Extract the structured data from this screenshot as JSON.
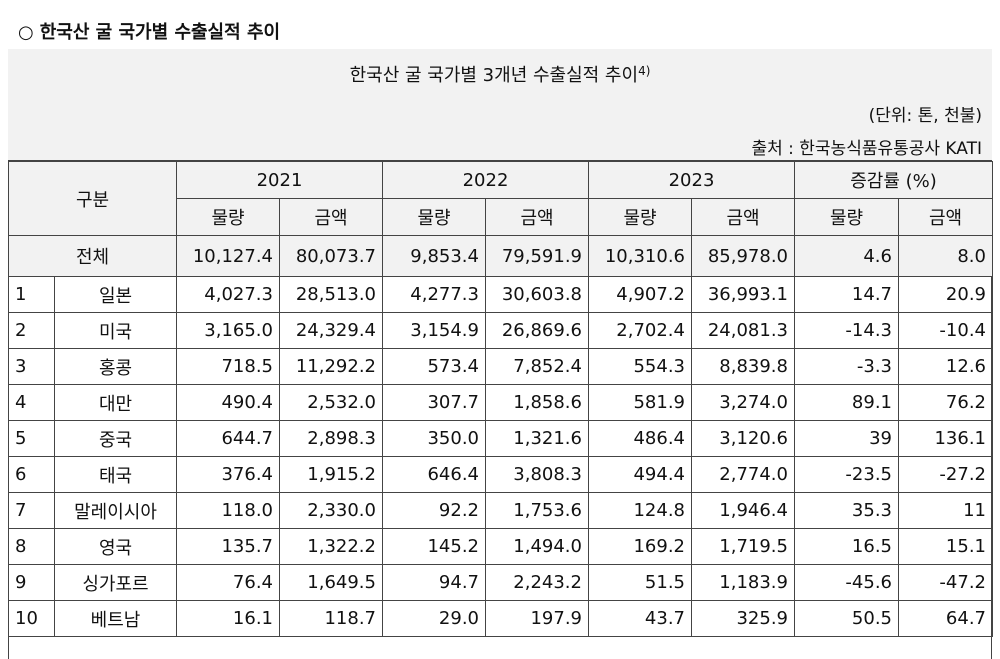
{
  "heading": {
    "marker": "○",
    "text": "한국산 굴 국가별 수출실적 추이"
  },
  "caption": {
    "title": "한국산 굴 국가별 3개년 수출실적 추이",
    "footnote": "4)",
    "unit": "(단위: 톤, 천불)",
    "source": "출처 : 한국농식품유통공사 KATI"
  },
  "columns": {
    "category": "구분",
    "years": [
      "2021",
      "2022",
      "2023"
    ],
    "change": "증감률 (%)",
    "volume": "물량",
    "amount": "금액"
  },
  "total": {
    "label": "전체",
    "values": [
      "10,127.4",
      "80,073.7",
      "9,853.4",
      "79,591.9",
      "10,310.6",
      "85,978.0",
      "4.6",
      "8.0"
    ]
  },
  "rows": [
    {
      "rank": "1",
      "country": "일본",
      "values": [
        "4,027.3",
        "28,513.0",
        "4,277.3",
        "30,603.8",
        "4,907.2",
        "36,993.1",
        "14.7",
        "20.9"
      ]
    },
    {
      "rank": "2",
      "country": "미국",
      "values": [
        "3,165.0",
        "24,329.4",
        "3,154.9",
        "26,869.6",
        "2,702.4",
        "24,081.3",
        "-14.3",
        "-10.4"
      ]
    },
    {
      "rank": "3",
      "country": "홍콩",
      "values": [
        "718.5",
        "11,292.2",
        "573.4",
        "7,852.4",
        "554.3",
        "8,839.8",
        "-3.3",
        "12.6"
      ]
    },
    {
      "rank": "4",
      "country": "대만",
      "values": [
        "490.4",
        "2,532.0",
        "307.7",
        "1,858.6",
        "581.9",
        "3,274.0",
        "89.1",
        "76.2"
      ]
    },
    {
      "rank": "5",
      "country": "중국",
      "values": [
        "644.7",
        "2,898.3",
        "350.0",
        "1,321.6",
        "486.4",
        "3,120.6",
        "39",
        "136.1"
      ]
    },
    {
      "rank": "6",
      "country": "태국",
      "values": [
        "376.4",
        "1,915.2",
        "646.4",
        "3,808.3",
        "494.4",
        "2,774.0",
        "-23.5",
        "-27.2"
      ]
    },
    {
      "rank": "7",
      "country": "말레이시아",
      "values": [
        "118.0",
        "2,330.0",
        "92.2",
        "1,753.6",
        "124.8",
        "1,946.4",
        "35.3",
        "11"
      ]
    },
    {
      "rank": "8",
      "country": "영국",
      "values": [
        "135.7",
        "1,322.2",
        "145.2",
        "1,494.0",
        "169.2",
        "1,719.5",
        "16.5",
        "15.1"
      ]
    },
    {
      "rank": "9",
      "country": "싱가포르",
      "values": [
        "76.4",
        "1,649.5",
        "94.7",
        "2,243.2",
        "51.5",
        "1,183.9",
        "-45.6",
        "-47.2"
      ]
    },
    {
      "rank": "10",
      "country": "베트남",
      "values": [
        "16.1",
        "118.7",
        "29.0",
        "197.9",
        "43.7",
        "325.9",
        "50.5",
        "64.7"
      ]
    }
  ]
}
